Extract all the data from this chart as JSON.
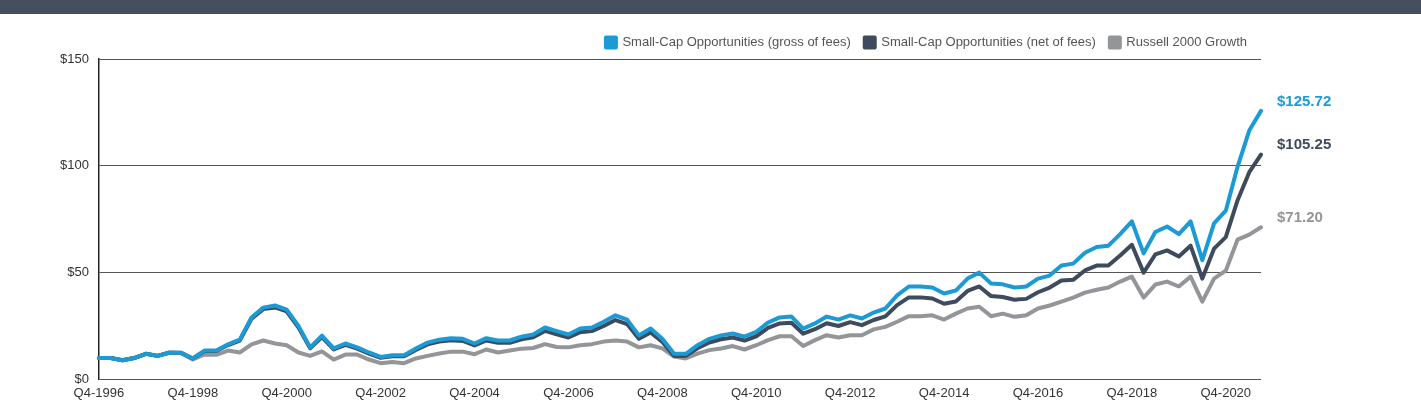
{
  "chart_data": {
    "type": "line",
    "categories": [
      "Q4-1996",
      null,
      null,
      null,
      null,
      null,
      null,
      null,
      "Q4-1998",
      null,
      null,
      null,
      null,
      null,
      null,
      null,
      "Q4-2000",
      null,
      null,
      null,
      null,
      null,
      null,
      null,
      "Q4-2002",
      null,
      null,
      null,
      null,
      null,
      null,
      null,
      "Q4-2004",
      null,
      null,
      null,
      null,
      null,
      null,
      null,
      "Q4-2006",
      null,
      null,
      null,
      null,
      null,
      null,
      null,
      "Q4-2008",
      null,
      null,
      null,
      null,
      null,
      null,
      null,
      "Q4-2010",
      null,
      null,
      null,
      null,
      null,
      null,
      null,
      "Q4-2012",
      null,
      null,
      null,
      null,
      null,
      null,
      null,
      "Q4-2014",
      null,
      null,
      null,
      null,
      null,
      null,
      null,
      "Q4-2016",
      null,
      null,
      null,
      null,
      null,
      null,
      null,
      "Q4-2018",
      null,
      null,
      null,
      null,
      null,
      null,
      null,
      "Q4-2020",
      null,
      null,
      null
    ],
    "series": [
      {
        "name": "Small-Cap Opportunities (gross of fees)",
        "color": "#1c9ad6",
        "values": [
          10,
          10,
          9,
          10,
          12,
          11,
          12.5,
          12.5,
          9.8,
          13.5,
          13.5,
          16.4,
          18.6,
          29,
          33.6,
          34.6,
          32.7,
          25,
          15,
          20.5,
          14.5,
          16.8,
          15,
          12.6,
          10.5,
          11.3,
          11.3,
          14.5,
          17.2,
          18.6,
          19.3,
          19,
          16.8,
          19.3,
          18.2,
          18.2,
          20,
          21,
          24.3,
          22.6,
          21,
          23.8,
          24.3,
          27,
          30,
          28,
          20.6,
          23.8,
          19,
          12,
          12,
          16,
          19,
          20.6,
          21.5,
          20,
          22.3,
          26.6,
          29,
          29.4,
          23.8,
          26.2,
          29.4,
          28,
          30,
          28.5,
          31.3,
          33.2,
          39.3,
          43.5,
          43.5,
          43,
          40.2,
          41.6,
          47.2,
          50,
          44.9,
          44.5,
          43,
          43.5,
          47.2,
          48.6,
          53.3,
          54.2,
          59.3,
          62,
          62.6,
          68,
          74,
          59,
          69,
          71.6,
          68,
          74,
          55.8,
          73,
          79,
          99.5,
          116.5,
          125.72
        ],
        "value_labels": [
          null,
          null,
          null,
          null,
          null,
          null,
          null,
          null,
          null,
          null,
          null,
          null,
          null,
          null,
          null,
          null,
          null,
          null,
          null,
          null,
          null,
          null,
          null,
          null,
          null,
          null,
          null,
          null,
          null,
          null,
          null,
          null,
          null,
          null,
          null,
          null,
          null,
          null,
          null,
          null,
          null,
          null,
          null,
          null,
          null,
          null,
          null,
          null,
          null,
          null,
          null,
          null,
          null,
          null,
          null,
          null,
          null,
          null,
          null,
          null,
          null,
          null,
          null,
          null,
          null,
          null,
          null,
          null,
          null,
          null,
          null,
          null,
          null,
          null,
          null,
          null,
          null,
          null,
          null,
          null,
          null,
          null,
          null,
          null,
          null,
          null,
          null,
          null,
          null,
          null,
          null,
          null,
          null,
          null,
          null,
          null,
          null,
          null,
          null,
          "$125.72"
        ]
      },
      {
        "name": "Small-Cap Opportunities (net of fees)",
        "color": "#3d4b5c",
        "values": [
          10,
          10,
          9,
          10,
          12,
          11,
          12.5,
          12.5,
          9.8,
          13.3,
          13.3,
          16.1,
          18.2,
          28.4,
          32.9,
          33.7,
          31.8,
          24.3,
          14.6,
          19.8,
          14,
          16.2,
          14.4,
          12.1,
          10.1,
          10.8,
          10.8,
          13.8,
          16.4,
          17.7,
          18.3,
          18,
          15.9,
          18.2,
          17.2,
          17.1,
          18.8,
          19.7,
          22.7,
          21.1,
          19.6,
          22.1,
          22.6,
          25,
          27.8,
          25.9,
          19,
          22,
          17.5,
          11,
          11,
          14.6,
          17.3,
          18.8,
          19.6,
          18.2,
          20.2,
          24.1,
          26.2,
          26.5,
          21.4,
          23.5,
          26.3,
          25,
          26.8,
          25.4,
          27.8,
          29.5,
          34.8,
          38.4,
          38.4,
          37.9,
          35.4,
          36.5,
          41.4,
          43.5,
          39,
          38.6,
          37.3,
          37.7,
          40.8,
          43,
          46.3,
          46.6,
          51,
          53.3,
          53.3,
          58,
          63,
          50,
          58.5,
          60.4,
          57.5,
          62.6,
          47.2,
          61.2,
          66.6,
          83.8,
          97,
          105.25
        ],
        "value_labels": [
          null,
          null,
          null,
          null,
          null,
          null,
          null,
          null,
          null,
          null,
          null,
          null,
          null,
          null,
          null,
          null,
          null,
          null,
          null,
          null,
          null,
          null,
          null,
          null,
          null,
          null,
          null,
          null,
          null,
          null,
          null,
          null,
          null,
          null,
          null,
          null,
          null,
          null,
          null,
          null,
          null,
          null,
          null,
          null,
          null,
          null,
          null,
          null,
          null,
          null,
          null,
          null,
          null,
          null,
          null,
          null,
          null,
          null,
          null,
          null,
          null,
          null,
          null,
          null,
          null,
          null,
          null,
          null,
          null,
          null,
          null,
          null,
          null,
          null,
          null,
          null,
          null,
          null,
          null,
          null,
          null,
          null,
          null,
          null,
          null,
          null,
          null,
          null,
          null,
          null,
          null,
          null,
          null,
          null,
          null,
          null,
          null,
          null,
          null,
          "$105.25"
        ]
      },
      {
        "name": "Russell 2000 Growth",
        "color": "#939598",
        "values": [
          10,
          10,
          9,
          10,
          12,
          11,
          12.6,
          12.3,
          9.3,
          11.7,
          11.5,
          13.5,
          12.6,
          16.4,
          18.2,
          16.8,
          16,
          12.6,
          11,
          13.1,
          9.3,
          11.6,
          11.6,
          9.3,
          7.6,
          8.1,
          7.6,
          9.8,
          11,
          12.1,
          13,
          13,
          11.8,
          14,
          12.6,
          13.5,
          14.4,
          14.7,
          16.5,
          15.2,
          15,
          16,
          16.5,
          17.7,
          18.2,
          17.7,
          15,
          16,
          14.5,
          10.7,
          9.8,
          12.1,
          13.7,
          14.5,
          15.6,
          14,
          16,
          18.4,
          20.2,
          20.2,
          15.6,
          18.4,
          20.7,
          19.6,
          20.7,
          20.7,
          23.4,
          24.6,
          27,
          29.6,
          29.6,
          30,
          28,
          30.8,
          33.2,
          34,
          29.6,
          30.8,
          29.3,
          30,
          33.2,
          34.6,
          36.4,
          38.3,
          40.6,
          42,
          43,
          45.8,
          48.1,
          38.3,
          44.4,
          45.8,
          43.5,
          48.1,
          36.4,
          47.2,
          50.9,
          65.4,
          67.8,
          71.2
        ],
        "value_labels": [
          null,
          null,
          null,
          null,
          null,
          null,
          null,
          null,
          null,
          null,
          null,
          null,
          null,
          null,
          null,
          null,
          null,
          null,
          null,
          null,
          null,
          null,
          null,
          null,
          null,
          null,
          null,
          null,
          null,
          null,
          null,
          null,
          null,
          null,
          null,
          null,
          null,
          null,
          null,
          null,
          null,
          null,
          null,
          null,
          null,
          null,
          null,
          null,
          null,
          null,
          null,
          null,
          null,
          null,
          null,
          null,
          null,
          null,
          null,
          null,
          null,
          null,
          null,
          null,
          null,
          null,
          null,
          null,
          null,
          null,
          null,
          null,
          null,
          null,
          null,
          null,
          null,
          null,
          null,
          null,
          null,
          null,
          null,
          null,
          null,
          null,
          null,
          null,
          null,
          null,
          null,
          null,
          null,
          null,
          null,
          null,
          null,
          null,
          null,
          "$71.20"
        ]
      }
    ],
    "ylim": [
      0,
      150
    ],
    "yticks": [
      {
        "value": 0,
        "label": "$0"
      },
      {
        "value": 50,
        "label": "$50"
      },
      {
        "value": 100,
        "label": "$100"
      },
      {
        "value": 150,
        "label": "$150"
      }
    ],
    "grid": "y",
    "legend": "top right",
    "marker": "none",
    "line_style": "solid"
  }
}
